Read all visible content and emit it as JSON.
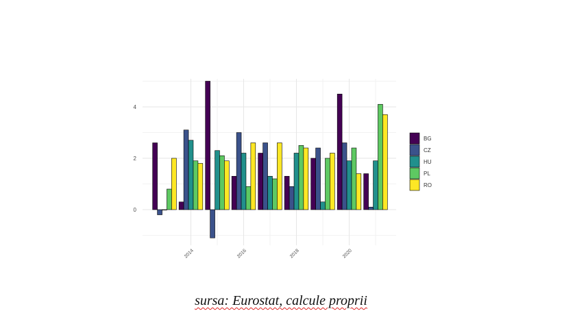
{
  "chart_data": {
    "type": "bar",
    "x": [
      2013,
      2014,
      2015,
      2016,
      2017,
      2018,
      2019,
      2020,
      2021
    ],
    "x_ticks": [
      "2014",
      "2016",
      "2018",
      "2020"
    ],
    "y_ticks": [
      "0",
      "2",
      "4"
    ],
    "ylim": [
      -1.2,
      5.1
    ],
    "grid": true,
    "legend_position": "right",
    "series": [
      {
        "name": "BG",
        "color": "#440154",
        "values": [
          2.6,
          0.3,
          5.0,
          1.3,
          2.2,
          1.3,
          2.0,
          4.5,
          1.4
        ]
      },
      {
        "name": "CZ",
        "color": "#3b528b",
        "values": [
          -0.2,
          3.1,
          -1.1,
          3.0,
          2.6,
          0.9,
          2.4,
          2.6,
          0.1
        ]
      },
      {
        "name": "HU",
        "color": "#21908c",
        "values": [
          0.0,
          2.7,
          2.3,
          2.2,
          1.3,
          2.2,
          0.3,
          1.9,
          1.9
        ]
      },
      {
        "name": "PL",
        "color": "#5ec962",
        "values": [
          0.8,
          1.9,
          2.1,
          0.9,
          1.2,
          2.5,
          2.0,
          2.4,
          4.1
        ]
      },
      {
        "name": "RO",
        "color": "#fde725",
        "values": [
          2.0,
          1.8,
          1.9,
          2.6,
          2.6,
          2.4,
          2.2,
          1.4,
          3.7
        ]
      }
    ]
  },
  "caption": "sursa: Eurostat, calcule proprii"
}
